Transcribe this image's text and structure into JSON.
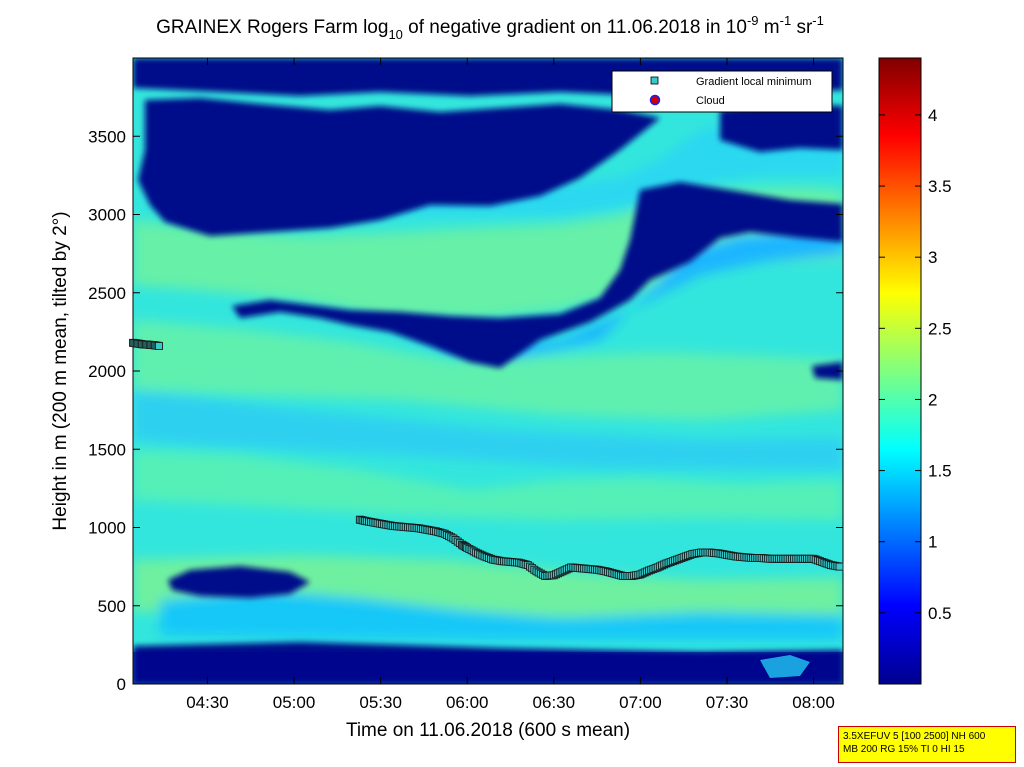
{
  "chart_data": {
    "type": "heatmap",
    "title_parts": {
      "lead": "GRAINEX Rogers Farm log",
      "sub": "10",
      "middle": " of negative gradient on 11.06.2018 in 10",
      "exp1": "-9",
      "unit1": " m",
      "exp2": "-1",
      "unit2": " sr",
      "exp3": "-1"
    },
    "xlabel": "Time on 11.06.2018 (600 s mean)",
    "ylabel": "Height in m (200 m mean, tilted by 2°)",
    "x_ticks": [
      "04:30",
      "05:00",
      "05:30",
      "06:00",
      "06:30",
      "07:00",
      "07:30",
      "08:00"
    ],
    "x_tick_hours": [
      4.5,
      5.0,
      5.5,
      6.0,
      6.5,
      7.0,
      7.5,
      8.0
    ],
    "xlim_hours": [
      4.07,
      8.17
    ],
    "y_ticks": [
      0,
      500,
      1000,
      1500,
      2000,
      2500,
      3000,
      3500
    ],
    "ylim": [
      0,
      4000
    ],
    "colorbar": {
      "ticks": [
        "0.5",
        "1",
        "1.5",
        "2",
        "2.5",
        "3",
        "3.5",
        "4"
      ],
      "tick_values": [
        0.5,
        1,
        1.5,
        2,
        2.5,
        3,
        3.5,
        4
      ],
      "range": [
        0,
        4.4
      ]
    },
    "legend": {
      "placement": "top-right",
      "entries": [
        {
          "label": "Gradient local minimum",
          "marker": "square",
          "color": "#33cccc"
        },
        {
          "label": "Cloud",
          "marker": "circle",
          "color": "#cc0000"
        }
      ]
    },
    "series": [
      {
        "name": "Gradient local minimum",
        "x_hours": [
          4.07,
          4.1,
          4.13,
          4.16,
          4.19,
          4.22,
          5.38,
          5.42,
          5.47,
          5.52,
          5.57,
          5.62,
          5.67,
          5.72,
          5.77,
          5.82,
          5.87,
          5.92,
          5.97,
          6.0,
          6.05,
          6.1,
          6.15,
          6.2,
          6.25,
          6.3,
          6.35,
          6.4,
          6.45,
          6.5,
          6.55,
          6.6,
          6.65,
          6.7,
          6.75,
          6.8,
          6.85,
          6.9,
          6.95,
          7.0,
          7.05,
          7.1,
          7.15,
          7.2,
          7.25,
          7.3,
          7.35,
          7.4,
          7.45,
          7.5,
          7.55,
          7.6,
          7.65,
          7.7,
          7.75,
          7.8,
          7.85,
          7.9,
          7.95,
          8.0,
          8.05,
          8.1,
          8.15
        ],
        "y": [
          2180,
          2175,
          2170,
          2168,
          2165,
          2160,
          1050,
          1040,
          1030,
          1020,
          1010,
          1005,
          1000,
          995,
          985,
          975,
          960,
          930,
          890,
          870,
          840,
          815,
          795,
          785,
          780,
          775,
          760,
          720,
          690,
          695,
          720,
          745,
          740,
          735,
          730,
          720,
          705,
          690,
          690,
          700,
          725,
          745,
          770,
          790,
          810,
          830,
          840,
          840,
          835,
          825,
          815,
          810,
          805,
          805,
          800,
          800,
          800,
          800,
          800,
          800,
          780,
          760,
          750
        ]
      },
      {
        "name": "Cloud",
        "x_hours": [],
        "y": []
      }
    ]
  },
  "info_box": {
    "line1": "3.5XEFUV 5 [100 2500] NH 600",
    "line2": "MB 200 RG 15% TI 0 HI 15"
  }
}
